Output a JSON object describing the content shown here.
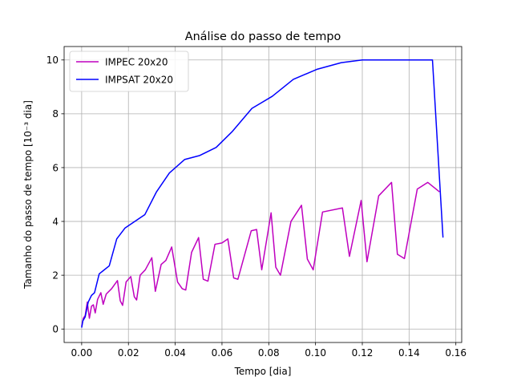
{
  "chart_data": {
    "type": "line",
    "title": "Análise do passo de tempo",
    "xlabel": "Tempo [dia]",
    "ylabel": "Tamanho do passo de tempo [10⁻³ dia]",
    "xlim": [
      -0.0075,
      0.1625
    ],
    "ylim": [
      -0.5,
      10.5
    ],
    "x_ticks": [
      0.0,
      0.02,
      0.04,
      0.06,
      0.08,
      0.1,
      0.12,
      0.14,
      0.16
    ],
    "x_tick_labels": [
      "0.00",
      "0.02",
      "0.04",
      "0.06",
      "0.08",
      "0.10",
      "0.12",
      "0.14",
      "0.16"
    ],
    "y_ticks": [
      0,
      2,
      4,
      6,
      8,
      10
    ],
    "y_tick_labels": [
      "0",
      "2",
      "4",
      "6",
      "8",
      "10"
    ],
    "grid": true,
    "legend_position": "top-left",
    "series": [
      {
        "name": "IMPEC 20x20",
        "color": "#bf00bf",
        "x": [
          0.0,
          0.0007,
          0.0015,
          0.0024,
          0.0033,
          0.0042,
          0.005,
          0.0058,
          0.0068,
          0.0082,
          0.0092,
          0.0105,
          0.0128,
          0.0153,
          0.0165,
          0.0175,
          0.019,
          0.021,
          0.0225,
          0.0235,
          0.025,
          0.0272,
          0.03,
          0.0315,
          0.034,
          0.036,
          0.0385,
          0.041,
          0.043,
          0.0445,
          0.047,
          0.05,
          0.052,
          0.054,
          0.057,
          0.06,
          0.0625,
          0.065,
          0.0668,
          0.0725,
          0.0748,
          0.077,
          0.081,
          0.083,
          0.085,
          0.0895,
          0.094,
          0.0965,
          0.099,
          0.103,
          0.1115,
          0.1145,
          0.1195,
          0.122,
          0.127,
          0.1325,
          0.135,
          0.138,
          0.1435,
          0.148,
          0.153
        ],
        "y": [
          0.1,
          0.4,
          0.5,
          1.0,
          0.4,
          0.85,
          0.9,
          0.6,
          1.1,
          1.35,
          0.92,
          1.3,
          1.5,
          1.8,
          1.05,
          0.88,
          1.75,
          1.95,
          1.2,
          1.08,
          2.0,
          2.2,
          2.65,
          1.4,
          2.4,
          2.55,
          3.05,
          1.75,
          1.5,
          1.45,
          2.85,
          3.4,
          1.85,
          1.78,
          3.15,
          3.2,
          3.35,
          1.9,
          1.85,
          3.65,
          3.7,
          2.2,
          4.32,
          2.3,
          2.0,
          4.0,
          4.6,
          2.6,
          2.2,
          4.35,
          4.5,
          2.7,
          4.78,
          2.5,
          4.95,
          5.45,
          2.78,
          2.62,
          5.2,
          5.45,
          5.1
        ]
      },
      {
        "name": "IMPSAT 20x20",
        "color": "#0000ff",
        "x": [
          0.0,
          0.0005,
          0.0015,
          0.0028,
          0.0042,
          0.0055,
          0.0075,
          0.0118,
          0.015,
          0.0185,
          0.027,
          0.032,
          0.0375,
          0.044,
          0.0505,
          0.0575,
          0.0645,
          0.0728,
          0.0815,
          0.0905,
          0.1005,
          0.111,
          0.12,
          0.135,
          0.15,
          0.1545
        ],
        "y": [
          0.05,
          0.3,
          0.45,
          1.0,
          1.25,
          1.35,
          2.05,
          2.35,
          3.35,
          3.75,
          4.25,
          5.1,
          5.8,
          6.3,
          6.45,
          6.75,
          7.35,
          8.2,
          8.65,
          9.28,
          9.65,
          9.9,
          10.0,
          10.0,
          10.0,
          3.4
        ]
      }
    ]
  }
}
